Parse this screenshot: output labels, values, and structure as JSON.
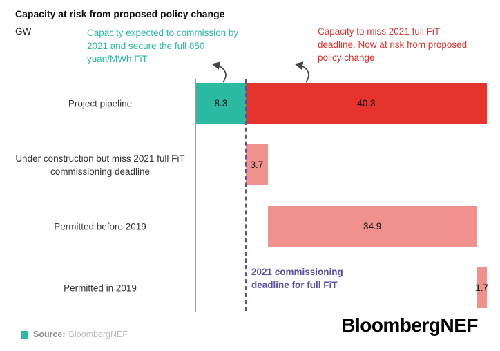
{
  "title": "Capacity at risk from proposed policy change",
  "unit_label": "GW",
  "annotations": {
    "teal": "Capacity expected to commission by 2021 and secure the full 850 yuan/MWh FiT",
    "red": "Capacity to miss 2021 full FiT deadline. Now at risk from proposed policy change",
    "deadline": "2021 commissioning deadline for full FiT"
  },
  "footer": {
    "source_prefix": "Source:",
    "source_name": "BloombergNEF",
    "logo": "BloombergNEF"
  },
  "colors": {
    "teal": "#2BBBA3",
    "red": "#E5332D",
    "pink": "#F0918D",
    "purple": "#5D50A3",
    "axis": "#9B9B9B",
    "source_prefix_gray": "#8C8C8C",
    "source_name_gray": "#BDBDBD"
  },
  "chart_data": {
    "type": "bar",
    "orientation": "horizontal",
    "unit": "GW",
    "xlim": [
      0,
      48.6
    ],
    "grid": false,
    "deadline_x": 8.3,
    "rows": [
      {
        "label": "Project pipeline",
        "segments": [
          {
            "value": 8.3,
            "start": 0,
            "color": "teal"
          },
          {
            "value": 40.3,
            "start": 8.3,
            "color": "red"
          }
        ]
      },
      {
        "label": "Under construction but miss 2021 full FiT commissioning deadline",
        "segments": [
          {
            "value": 3.7,
            "start": 8.3,
            "color": "pink"
          }
        ]
      },
      {
        "label": "Permitted before 2019",
        "segments": [
          {
            "value": 34.9,
            "start": 12.0,
            "color": "pink"
          }
        ]
      },
      {
        "label": "Permitted in 2019",
        "segments": [
          {
            "value": 1.7,
            "start": 46.9,
            "color": "pink"
          }
        ]
      }
    ]
  }
}
